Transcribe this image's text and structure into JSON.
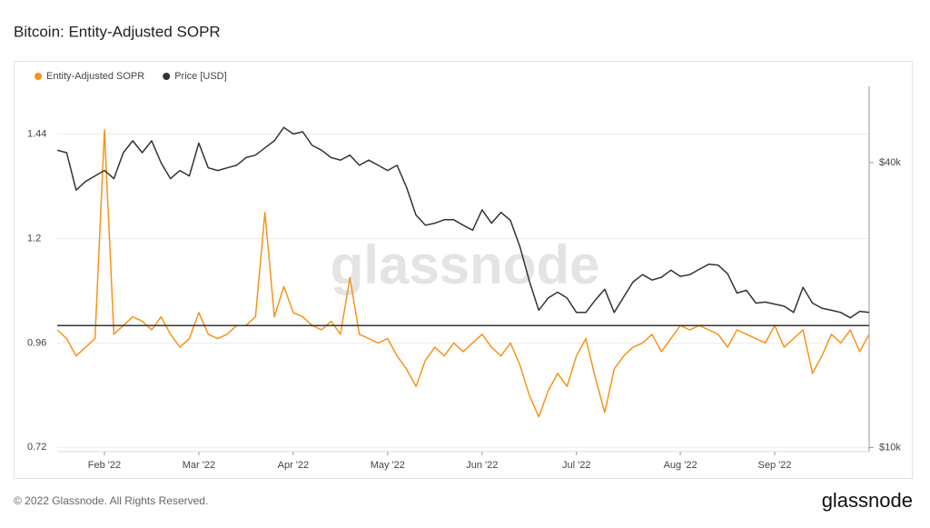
{
  "chart_data": {
    "type": "line",
    "title": "Bitcoin: Entity-Adjusted SOPR",
    "categories": [
      null,
      null,
      null,
      null,
      null,
      "Feb '22",
      null,
      null,
      null,
      null,
      null,
      null,
      null,
      null,
      null,
      "Mar '22",
      null,
      null,
      null,
      null,
      null,
      null,
      null,
      null,
      null,
      "Apr '22",
      null,
      null,
      null,
      null,
      null,
      null,
      null,
      null,
      null,
      "May '22",
      null,
      null,
      null,
      null,
      null,
      null,
      null,
      null,
      null,
      "Jun '22",
      null,
      null,
      null,
      null,
      null,
      null,
      null,
      null,
      null,
      "Jul '22",
      null,
      null,
      null,
      null,
      null,
      null,
      null,
      null,
      null,
      null,
      "Aug '22",
      null,
      null,
      null,
      null,
      null,
      null,
      null,
      null,
      null,
      "Sep '22",
      null,
      null,
      null,
      null,
      null,
      null,
      null,
      null,
      null,
      null
    ],
    "series": [
      {
        "name": "Entity-Adjusted SOPR",
        "color": "#f7931a",
        "axis": "y",
        "values": [
          0.99,
          0.97,
          0.93,
          0.95,
          0.97,
          1.45,
          0.98,
          1.0,
          1.02,
          1.01,
          0.99,
          1.02,
          0.98,
          0.95,
          0.97,
          1.03,
          0.98,
          0.97,
          0.98,
          1.0,
          1.0,
          1.02,
          1.26,
          1.02,
          1.09,
          1.03,
          1.02,
          1.0,
          0.99,
          1.01,
          0.98,
          1.11,
          0.98,
          0.97,
          0.96,
          0.97,
          0.93,
          0.9,
          0.86,
          0.92,
          0.95,
          0.93,
          0.96,
          0.94,
          0.96,
          0.98,
          0.95,
          0.93,
          0.96,
          0.91,
          0.84,
          0.79,
          0.85,
          0.89,
          0.86,
          0.93,
          0.97,
          0.88,
          0.8,
          0.9,
          0.93,
          0.95,
          0.96,
          0.98,
          0.94,
          0.97,
          1.0,
          0.99,
          1.0,
          0.99,
          0.98,
          0.95,
          0.99,
          0.98,
          0.97,
          0.96,
          1.0,
          0.95,
          0.97,
          0.99,
          0.89,
          0.93,
          0.98,
          0.96,
          0.99,
          0.94,
          0.98
        ]
      },
      {
        "name": "Price [USD]",
        "color": "#333333",
        "axis": "y2",
        "values": [
          42500,
          42000,
          35000,
          36500,
          37500,
          38500,
          37000,
          42000,
          44500,
          42000,
          44500,
          40000,
          37000,
          38500,
          37500,
          44000,
          39000,
          38500,
          39000,
          39500,
          41000,
          41500,
          43000,
          44500,
          47500,
          46000,
          46500,
          43500,
          42500,
          41000,
          40500,
          41500,
          39500,
          40500,
          39500,
          38500,
          39500,
          35500,
          31000,
          29500,
          29800,
          30300,
          30300,
          29500,
          28800,
          31800,
          29800,
          31400,
          30200,
          26600,
          22500,
          19500,
          20700,
          21300,
          20700,
          19300,
          19300,
          20500,
          21600,
          19300,
          20800,
          22400,
          23200,
          22600,
          22900,
          23700,
          23000,
          23200,
          23800,
          24400,
          24300,
          23300,
          21200,
          21500,
          20200,
          20300,
          20100,
          19900,
          19300,
          21800,
          20200,
          19700,
          19500,
          19300,
          18800,
          19400,
          19300
        ]
      }
    ],
    "ylim": [
      0.71,
      1.55
    ],
    "yticks": [
      0.72,
      0.96,
      1.2,
      1.44
    ],
    "y2lim": [
      9800,
      58000
    ],
    "y2log": true,
    "y2ticks": [
      {
        "value": 10000,
        "label": "$10k"
      },
      {
        "value": 40000,
        "label": "$40k"
      }
    ],
    "reference_line": 1,
    "grid": true,
    "legend": "top-left"
  },
  "watermark": "glassnode",
  "footer": "© 2022 Glassnode. All Rights Reserved.",
  "logo": "glassnode"
}
